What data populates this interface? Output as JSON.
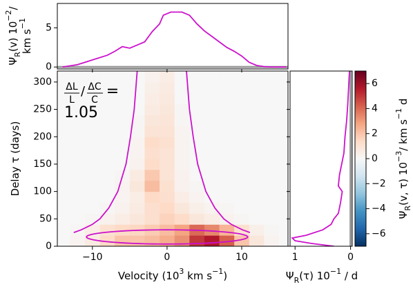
{
  "chart_data": [
    {
      "type": "line",
      "ylabel": [
        [
          {
            "text": "Ψ"
          },
          {
            "text": "R",
            "s": "sub"
          },
          {
            "text": "(v) 10"
          },
          {
            "text": "−2",
            "s": "sup"
          },
          {
            "text": "/"
          }
        ],
        [
          {
            "text": "km s"
          },
          {
            "text": "−1",
            "s": "sup"
          }
        ]
      ],
      "x": [
        -14,
        -12,
        -10,
        -8,
        -7,
        -6,
        -5,
        -4,
        -3,
        -2,
        -1,
        -0.5,
        0.5,
        2,
        3,
        4,
        5,
        6,
        7,
        8,
        9,
        10,
        11,
        12,
        13,
        14,
        16
      ],
      "values": [
        0,
        0.3,
        0.9,
        1.5,
        2.0,
        2.6,
        2.4,
        2.8,
        3.2,
        4.5,
        5.5,
        6.6,
        7.0,
        7.0,
        6.6,
        5.5,
        4.6,
        3.9,
        3.2,
        2.5,
        2.0,
        1.4,
        0.6,
        0.2,
        0.05,
        0,
        0
      ],
      "color": "#cc11cc",
      "xlim": [
        -14.7,
        16.2
      ],
      "ylim": [
        -0.25,
        8.1
      ],
      "xticks": [
        -10,
        0,
        10
      ],
      "xtick_labels": false,
      "yticks": [
        0,
        5
      ]
    },
    {
      "type": "heatmap",
      "xlabel": [
        [
          {
            "text": "Velocity (10"
          },
          {
            "text": "3",
            "s": "sup"
          },
          {
            "text": " km s"
          },
          {
            "text": "−1",
            "s": "sup"
          },
          {
            "text": ")"
          }
        ]
      ],
      "ylabel": [
        [
          {
            "text": "Delay τ (days)"
          }
        ]
      ],
      "x_edges": [
        -15,
        -13,
        -11,
        -9,
        -7,
        -5,
        -3,
        -1,
        1,
        3,
        5,
        7,
        9,
        11,
        13,
        15,
        17
      ],
      "y_edges": [
        0,
        20,
        40,
        60,
        80,
        100,
        120,
        140,
        160,
        180,
        200,
        220,
        240,
        260,
        280,
        300,
        320
      ],
      "values": [
        [
          0,
          0.2,
          0.6,
          1.4,
          2,
          2,
          2.2,
          2.6,
          3.2,
          5,
          5.6,
          4.2,
          2,
          0.8,
          0.2,
          0
        ],
        [
          0,
          0.1,
          0.5,
          1.1,
          1.4,
          1.5,
          1.8,
          2.2,
          2.8,
          4,
          3.4,
          2.4,
          1.1,
          0.4,
          0.1,
          0
        ],
        [
          0,
          0,
          0.1,
          0.3,
          0.5,
          0.8,
          1.2,
          1.6,
          1.3,
          0.8,
          0.5,
          0.3,
          0.1,
          0,
          0,
          0
        ],
        [
          0,
          0,
          0,
          0.1,
          0.3,
          0.6,
          1.2,
          1.4,
          0.8,
          0.4,
          0.2,
          0.1,
          0,
          0,
          0,
          0
        ],
        [
          0,
          0,
          0,
          0,
          0.2,
          0.5,
          1.4,
          1.2,
          0.5,
          0.2,
          0,
          0,
          0,
          0,
          0,
          0
        ],
        [
          0,
          0,
          0,
          0,
          0.2,
          0.8,
          2.2,
          1.1,
          0.3,
          0.1,
          0,
          0,
          0,
          0,
          0,
          0
        ],
        [
          0,
          0,
          0,
          0,
          0.1,
          0.6,
          1.9,
          1,
          0.3,
          0,
          0,
          0,
          0,
          0,
          0,
          0
        ],
        [
          0,
          0,
          0,
          0,
          0,
          0.3,
          1.3,
          1,
          0.2,
          0,
          0,
          0,
          0,
          0,
          0,
          0
        ],
        [
          0,
          0,
          0,
          0,
          0,
          0.2,
          1.2,
          1,
          0.2,
          0,
          0,
          0,
          0,
          0,
          0,
          0
        ],
        [
          0,
          0,
          0,
          0,
          0,
          0.2,
          1.3,
          1.1,
          0.2,
          0,
          0,
          0,
          0,
          0,
          0,
          0
        ],
        [
          0,
          0,
          0,
          0,
          0,
          0.1,
          1,
          1,
          0.2,
          0,
          0,
          0,
          0,
          0,
          0,
          0
        ],
        [
          0,
          0,
          0,
          0,
          0,
          0.1,
          0.8,
          0.9,
          0.1,
          0,
          0,
          0,
          0,
          0,
          0,
          0
        ],
        [
          0,
          0,
          0,
          0,
          0,
          0,
          0.6,
          0.8,
          0.1,
          0,
          0,
          0,
          0,
          0,
          0,
          0
        ],
        [
          0,
          0,
          0,
          0,
          0,
          0,
          0.5,
          0.7,
          0,
          0,
          0,
          0,
          0,
          0,
          0,
          0
        ],
        [
          0,
          0,
          0,
          0,
          0,
          0,
          0.4,
          0.6,
          0,
          0,
          0,
          0,
          0,
          0,
          0,
          0
        ],
        [
          0,
          0,
          0,
          0,
          0,
          0,
          0.3,
          0.5,
          0,
          0,
          0,
          0,
          0,
          0,
          0,
          0
        ]
      ],
      "xlim": [
        -14.7,
        16.2
      ],
      "ylim": [
        0,
        320
      ],
      "xticks": [
        {
          "value": -10,
          "label": "−10"
        },
        0,
        10
      ],
      "yticks": [
        0,
        50,
        100,
        150,
        200,
        250,
        300
      ],
      "curve_color": "#cc11cc",
      "curves": [
        {
          "x": [
            -4.0,
            -4.4,
            -4.9,
            -5.5,
            -6.6,
            -7.8,
            -9.0,
            -10.0,
            -11.5,
            -12.5
          ],
          "y": [
            320,
            250,
            200,
            150,
            100,
            70,
            50,
            40,
            30,
            25
          ]
        },
        {
          "x": [
            2.6,
            3.0,
            3.5,
            4.1,
            5.2,
            6.4,
            7.6,
            8.6,
            10.1,
            11.1
          ],
          "y": [
            320,
            250,
            200,
            150,
            100,
            70,
            50,
            40,
            30,
            25
          ]
        }
      ],
      "ellipse": {
        "v": 0,
        "tau": 17,
        "half_width": 10.8,
        "half_height": 13
      },
      "annotation": {
        "num_1": "ΔL",
        "den_1": "L",
        "slash": "/",
        "num_2": "ΔC",
        "den_2": "C",
        "equals": "=",
        "value": "1.05"
      }
    },
    {
      "type": "line",
      "orientation": "horizontal",
      "xlabel": [
        [
          {
            "text": "Ψ"
          },
          {
            "text": "R",
            "s": "sub"
          },
          {
            "text": "(τ) 10"
          },
          {
            "text": "−1",
            "s": "sup"
          },
          {
            "text": " / d"
          }
        ]
      ],
      "y": [
        0,
        5,
        10,
        15,
        20,
        30,
        40,
        50,
        60,
        80,
        100,
        110,
        130,
        150,
        170,
        200,
        230,
        260,
        300,
        320
      ],
      "values": [
        0.3,
        0.7,
        1.0,
        1.05,
        0.8,
        0.5,
        0.35,
        0.3,
        0.22,
        0.18,
        0.15,
        0.22,
        0.2,
        0.16,
        0.12,
        0.1,
        0.07,
        0.05,
        0.03,
        0.02
      ],
      "color": "#cc11cc",
      "xlim": [
        1.09,
        -0.03
      ],
      "ylim": [
        0,
        320
      ],
      "xticks": [
        1,
        0
      ],
      "yticks": [
        0,
        50,
        100,
        150,
        200,
        250,
        300
      ],
      "ytick_labels": false
    },
    {
      "type": "colorbar",
      "label": [
        [
          {
            "text": "Ψ"
          },
          {
            "text": "R",
            "s": "sub"
          },
          {
            "text": "(v, τ) 10"
          },
          {
            "text": "−3",
            "s": "sup"
          },
          {
            "text": "/ km s"
          },
          {
            "text": "−1",
            "s": "sup"
          },
          {
            "text": " d"
          }
        ]
      ],
      "colormap": "RdBu_r",
      "ylim": [
        -7,
        7
      ],
      "yticks": [
        {
          "value": -6,
          "label": "−6"
        },
        {
          "value": -4,
          "label": "−4"
        },
        {
          "value": -2,
          "label": "−2"
        },
        0,
        2,
        4,
        6
      ]
    }
  ]
}
